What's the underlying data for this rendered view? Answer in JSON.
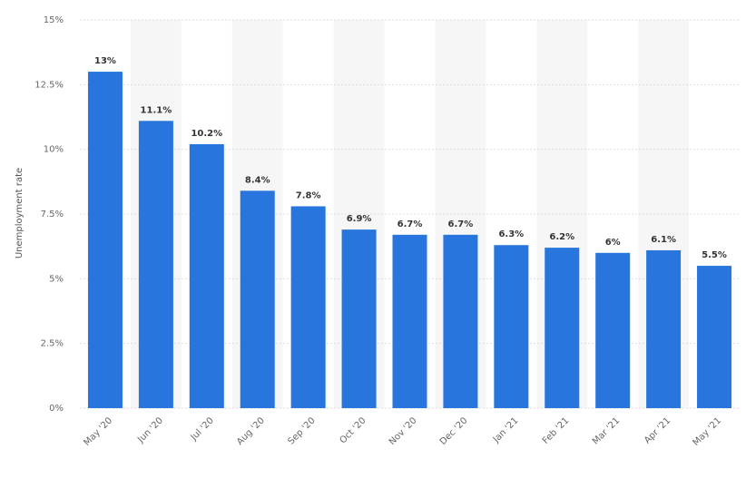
{
  "chart_data": {
    "type": "bar",
    "categories": [
      "May '20",
      "Jun '20",
      "Jul '20",
      "Aug '20",
      "Sep '20",
      "Oct '20",
      "Nov '20",
      "Dec '20",
      "Jan '21",
      "Feb '21",
      "Mar '21",
      "Apr '21",
      "May '21"
    ],
    "values": [
      13,
      11.1,
      10.2,
      8.4,
      7.8,
      6.9,
      6.7,
      6.7,
      6.3,
      6.2,
      6,
      6.1,
      5.5
    ],
    "data_labels": [
      "13%",
      "11.1%",
      "10.2%",
      "8.4%",
      "7.8%",
      "6.9%",
      "6.7%",
      "6.7%",
      "6.3%",
      "6.2%",
      "6%",
      "6.1%",
      "5.5%"
    ],
    "title": "",
    "xlabel": "",
    "ylabel": "Unemployment rate",
    "ylim": [
      0,
      15
    ],
    "yticks": [
      0,
      2.5,
      5,
      7.5,
      10,
      12.5,
      15
    ],
    "ytick_labels": [
      "0%",
      "2.5%",
      "5%",
      "7.5%",
      "10%",
      "12.5%",
      "15%"
    ],
    "grid": true,
    "bar_color": "#2775dd",
    "alternate_band_color": "#f6f6f6"
  }
}
